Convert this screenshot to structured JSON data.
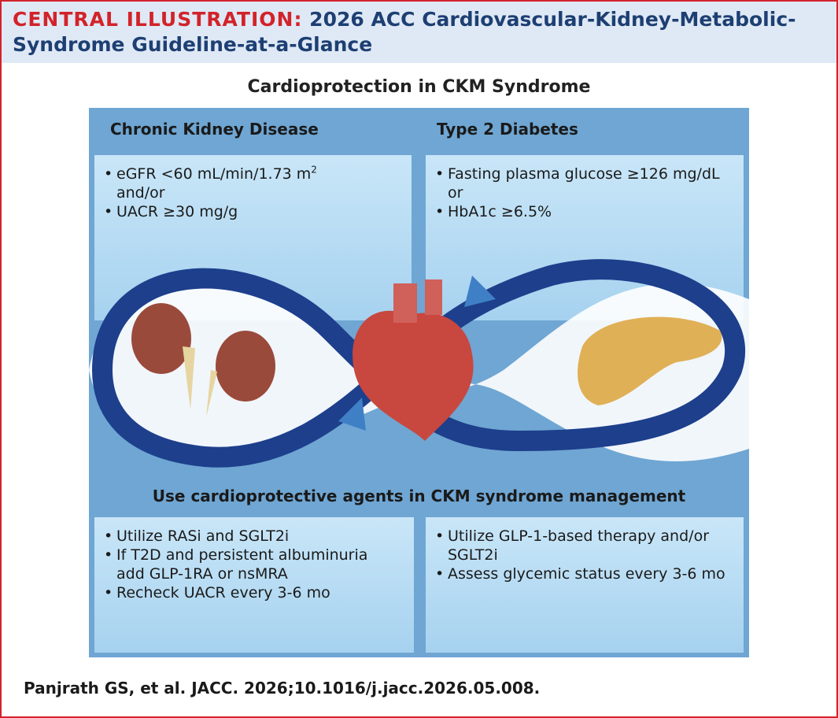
{
  "header": {
    "label": "CENTRAL ILLUSTRATION:",
    "title": [
      "2026 ACC Cardiovascular-Kidney-Metabolic-",
      "Syndrome Guideline-at-a-Glance"
    ]
  },
  "main_title": "Cardioprotection in CKM Syndrome",
  "criteria": [
    {
      "heading": "Chronic Kidney Disease",
      "items": [
        {
          "text": "eGFR <60 mL/min/1.73 m",
          "sup": "2",
          "cont": "and/or"
        },
        {
          "text": "UACR ≥30 mg/g"
        }
      ]
    },
    {
      "heading": "Type 2 Diabetes",
      "items": [
        {
          "text": "Fasting plasma glucose ≥126 mg/dL",
          "cont": "or"
        },
        {
          "text": "HbA1c ≥6.5%"
        }
      ]
    }
  ],
  "management": {
    "heading": "Use cardioprotective agents in CKM syndrome management",
    "panels": [
      {
        "items": [
          {
            "text": "Utilize RASi and SGLT2i"
          },
          {
            "text": "If T2D and persistent albuminuria",
            "cont": "add GLP-1RA or nsMRA"
          },
          {
            "text": "Recheck UACR every 3-6 mo"
          }
        ]
      },
      {
        "items": [
          {
            "text": "Utilize GLP-1-based therapy and/or",
            "cont": "SGLT2i"
          },
          {
            "text": "Assess glycemic status every 3-6 mo"
          }
        ]
      }
    ]
  },
  "citation": "Panjrath GS, et al. JACC. 2026;10.1016/j.jacc.2026.05.008."
}
